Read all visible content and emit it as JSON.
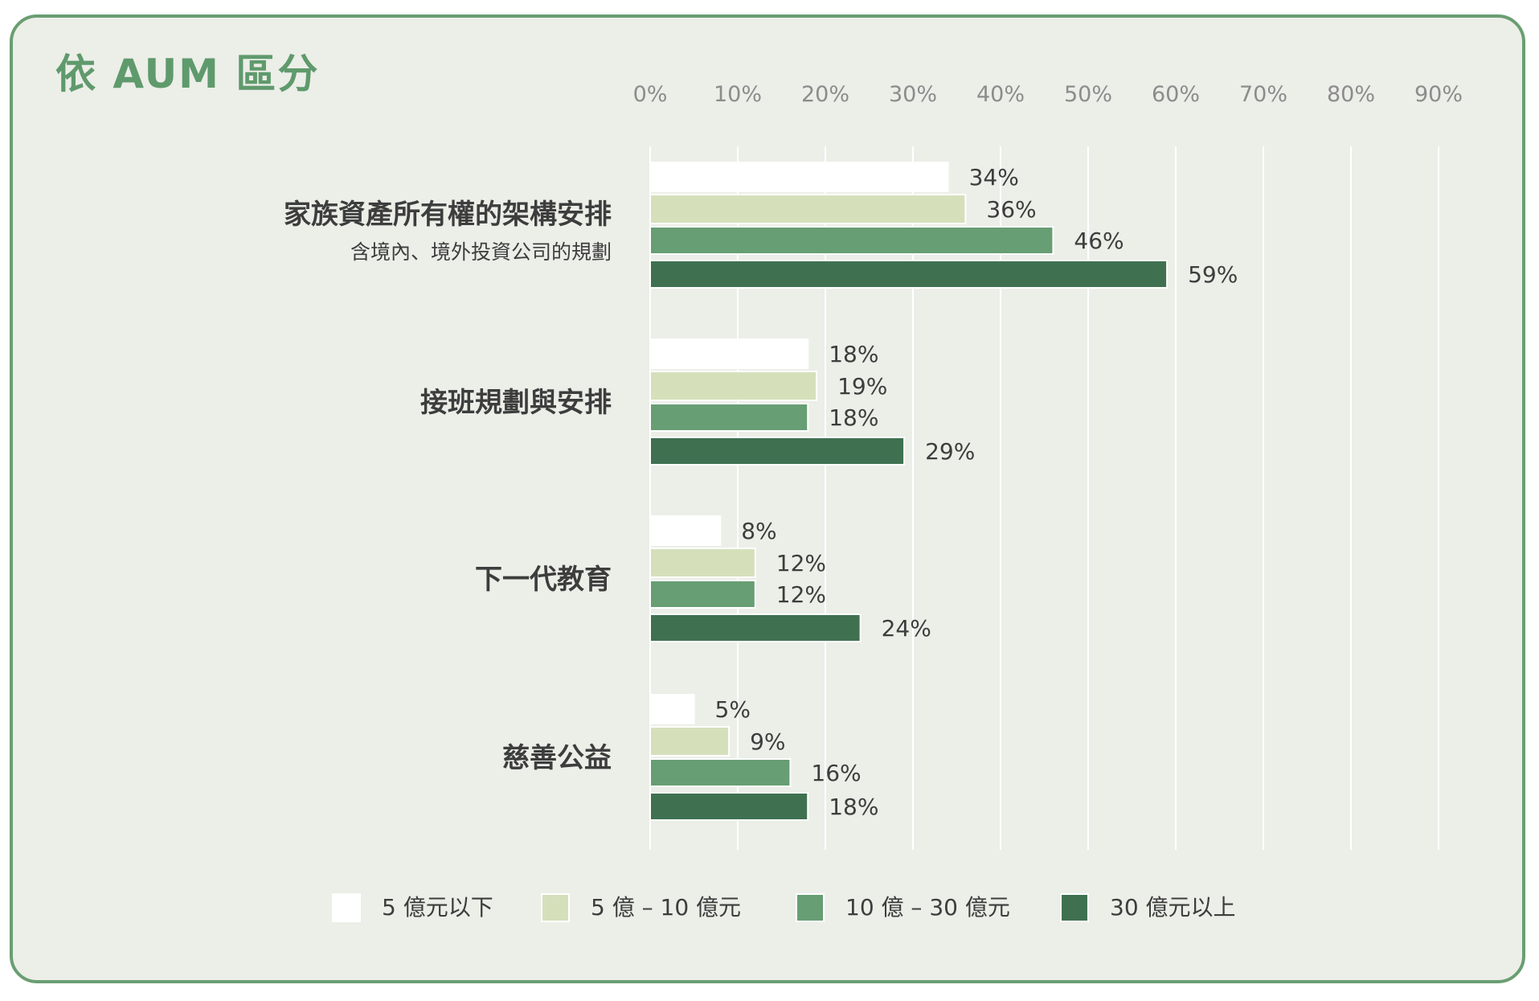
{
  "title": "依 AUM 區分",
  "colors": {
    "border": "#6a9e72",
    "background": "#eceee8",
    "grid": "#ffffff",
    "tick_text": "#8c8c8c",
    "label_text": "#3d3d3d",
    "title_text": "#5f9a6c"
  },
  "chart_data": {
    "type": "bar",
    "orientation": "horizontal",
    "title": "依 AUM 區分",
    "xlim": [
      0,
      90
    ],
    "x_ticks": [
      "0%",
      "10%",
      "20%",
      "30%",
      "40%",
      "50%",
      "60%",
      "70%",
      "80%",
      "90%"
    ],
    "x_tick_values": [
      0,
      10,
      20,
      30,
      40,
      50,
      60,
      70,
      80,
      90
    ],
    "value_suffix": "%",
    "grid": true,
    "legend_position": "bottom",
    "categories": [
      {
        "label": "家族資產所有權的架構安排",
        "sublabel": "含境內、境外投資公司的規劃"
      },
      {
        "label": "接班規劃與安排",
        "sublabel": ""
      },
      {
        "label": "下一代教育",
        "sublabel": ""
      },
      {
        "label": "慈善公益",
        "sublabel": ""
      }
    ],
    "series": [
      {
        "name": "5 億元以下",
        "color": "#ffffff",
        "values": [
          34,
          18,
          8,
          5
        ]
      },
      {
        "name": "5 億 – 10 億元",
        "color": "#d5e0bb",
        "values": [
          36,
          19,
          12,
          9
        ]
      },
      {
        "name": "10 億 – 30 億元",
        "color": "#679e73",
        "values": [
          46,
          18,
          12,
          16
        ]
      },
      {
        "name": "30 億元以上",
        "color": "#3f7151",
        "values": [
          59,
          29,
          24,
          18
        ]
      }
    ]
  }
}
